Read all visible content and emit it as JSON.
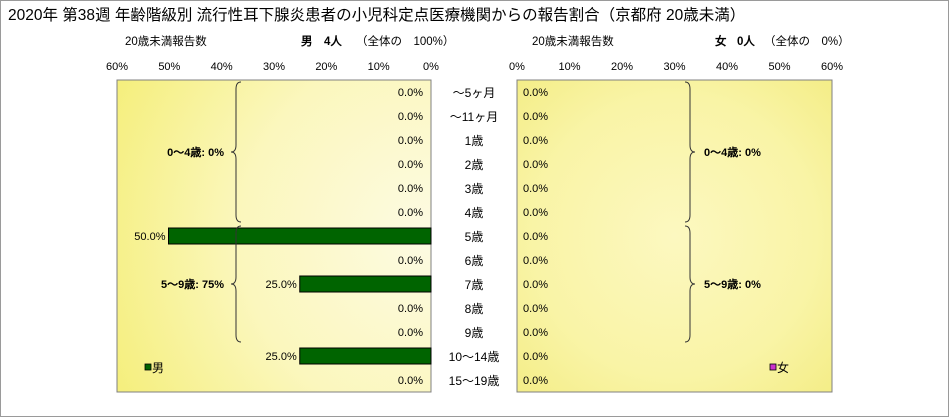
{
  "title": "2020年 第38週 年齢階級別 流行性耳下腺炎患者の小児科定点医療機関からの報告割合（京都府 20歳未満）",
  "left_panel": {
    "subtitle_count_label": "20歳未満報告数",
    "subtitle_sex": "男",
    "subtitle_count": "4人",
    "subtitle_share": "（全体の　100%）",
    "legend_label": "男",
    "legend_color": "#006400"
  },
  "right_panel": {
    "subtitle_count_label": "20歳未満報告数",
    "subtitle_sex": "女",
    "subtitle_count": "0人",
    "subtitle_share": "（全体の　0%）",
    "legend_label": "女",
    "legend_color": "#cc33cc"
  },
  "chart_data": [
    {
      "type": "bar",
      "orientation": "horizontal",
      "direction": "right-to-left",
      "series": [
        {
          "name": "男",
          "values": [
            0.0,
            0.0,
            0.0,
            0.0,
            0.0,
            0.0,
            50.0,
            0.0,
            25.0,
            0.0,
            0.0,
            25.0,
            0.0
          ]
        }
      ],
      "categories": [
        "～5ヶ月",
        "～11ヶ月",
        "1歳",
        "2歳",
        "3歳",
        "4歳",
        "5歳",
        "6歳",
        "7歳",
        "8歳",
        "9歳",
        "10～14歳",
        "15～19歳"
      ],
      "value_labels": [
        "0.0%",
        "0.0%",
        "0.0%",
        "0.0%",
        "0.0%",
        "0.0%",
        "50.0%",
        "0.0%",
        "25.0%",
        "0.0%",
        "0.0%",
        "25.0%",
        "0.0%"
      ],
      "xlim": [
        0,
        60
      ],
      "x_ticks": [
        "60%",
        "50%",
        "40%",
        "30%",
        "20%",
        "10%",
        "0%"
      ],
      "groups": [
        {
          "label": "0～4歳: 0%",
          "from": 0,
          "to": 5
        },
        {
          "label": "5～9歳: 75%",
          "from": 6,
          "to": 10
        }
      ],
      "legend": "bottom-left",
      "grid": false
    },
    {
      "type": "bar",
      "orientation": "horizontal",
      "direction": "left-to-right",
      "series": [
        {
          "name": "女",
          "values": [
            0.0,
            0.0,
            0.0,
            0.0,
            0.0,
            0.0,
            0.0,
            0.0,
            0.0,
            0.0,
            0.0,
            0.0,
            0.0
          ]
        }
      ],
      "categories": [
        "～5ヶ月",
        "～11ヶ月",
        "1歳",
        "2歳",
        "3歳",
        "4歳",
        "5歳",
        "6歳",
        "7歳",
        "8歳",
        "9歳",
        "10～14歳",
        "15～19歳"
      ],
      "value_labels": [
        "0.0%",
        "0.0%",
        "0.0%",
        "0.0%",
        "0.0%",
        "0.0%",
        "0.0%",
        "0.0%",
        "0.0%",
        "0.0%",
        "0.0%",
        "0.0%",
        "0.0%"
      ],
      "xlim": [
        0,
        60
      ],
      "x_ticks": [
        "0%",
        "10%",
        "20%",
        "30%",
        "40%",
        "50%",
        "60%"
      ],
      "groups": [
        {
          "label": "0～4歳: 0%",
          "from": 0,
          "to": 5
        },
        {
          "label": "5～9歳: 0%",
          "from": 6,
          "to": 10
        }
      ],
      "legend": "bottom-right",
      "grid": false
    }
  ]
}
